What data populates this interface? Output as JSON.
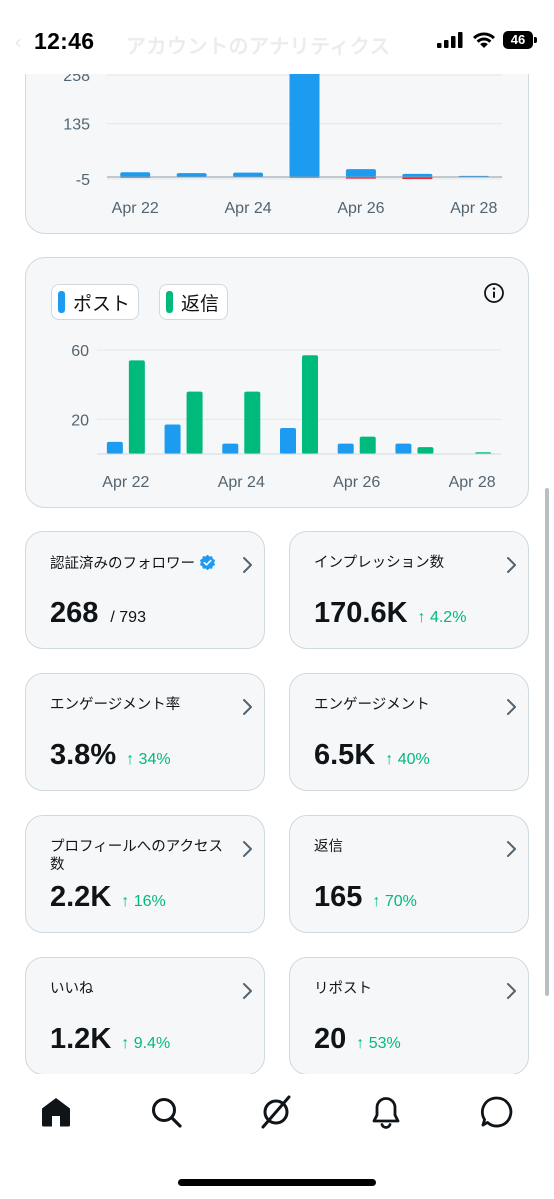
{
  "status_bar": {
    "time": "12:46",
    "battery_level": "46",
    "header_title": "アカウントのアナリティクス",
    "icons": [
      "back-arrow-icon",
      "signal-icon",
      "wifi-icon",
      "battery-icon"
    ]
  },
  "chart_data": [
    {
      "type": "bar",
      "categories": [
        "Apr 22",
        "Apr 23",
        "Apr 24",
        "Apr 25",
        "Apr 26",
        "Apr 27",
        "Apr 28"
      ],
      "x_tick_labels": [
        "Apr 22",
        "Apr 24",
        "Apr 26",
        "Apr 28"
      ],
      "y_tick_labels": [
        "258",
        "135",
        "-5"
      ],
      "ylim": [
        -5,
        258
      ],
      "series": [
        {
          "values": [
            12,
            10,
            11,
            270,
            20,
            8,
            3
          ],
          "color": "#1d9bf0"
        },
        {
          "values": [
            -2,
            -1,
            -1,
            -2,
            -4,
            -5,
            0
          ],
          "color": "#f4212e"
        }
      ],
      "grid": true
    },
    {
      "type": "bar",
      "categories": [
        "Apr 22",
        "Apr 23",
        "Apr 24",
        "Apr 25",
        "Apr 26",
        "Apr 27",
        "Apr 28"
      ],
      "x_tick_labels": [
        "Apr 22",
        "Apr 24",
        "Apr 26",
        "Apr 28"
      ],
      "y_tick_labels": [
        "60",
        "20"
      ],
      "ylim": [
        0,
        60
      ],
      "series": [
        {
          "name": "ポスト",
          "values": [
            7,
            17,
            6,
            15,
            6,
            6,
            0
          ],
          "color": "#1d9bf0"
        },
        {
          "name": "返信",
          "values": [
            54,
            36,
            36,
            57,
            10,
            4,
            1
          ],
          "color": "#00ba7c"
        }
      ],
      "grid": true,
      "legend": "top-left"
    }
  ],
  "metrics": [
    {
      "label": "認証済みのフォロワー",
      "value": "268",
      "sub": "/ 793",
      "change": "",
      "verified": true
    },
    {
      "label": "インプレッション数",
      "value": "170.6K",
      "sub": "",
      "change": "↑ 4.2%"
    },
    {
      "label": "エンゲージメント率",
      "value": "3.8%",
      "sub": "",
      "change": "↑ 34%"
    },
    {
      "label": "エンゲージメント",
      "value": "6.5K",
      "sub": "",
      "change": "↑ 40%"
    },
    {
      "label": "プロフィールへのアクセス数",
      "value": "2.2K",
      "sub": "",
      "change": "↑ 16%"
    },
    {
      "label": "返信",
      "value": "165",
      "sub": "",
      "change": "↑ 70%"
    },
    {
      "label": "いいね",
      "value": "1.2K",
      "sub": "",
      "change": "↑ 9.4%"
    },
    {
      "label": "リポスト",
      "value": "20",
      "sub": "",
      "change": "↑ 53%"
    }
  ],
  "bottom_nav": {
    "items": [
      "home-icon",
      "search-icon",
      "grok-icon",
      "notifications-icon",
      "messages-icon"
    ],
    "active": "home-icon"
  },
  "colors": {
    "accent_blue": "#1d9bf0",
    "accent_green": "#00ba7c",
    "negative_red": "#f4212e",
    "card_bg": "#f6f7f8",
    "card_border": "#cfd9de"
  }
}
